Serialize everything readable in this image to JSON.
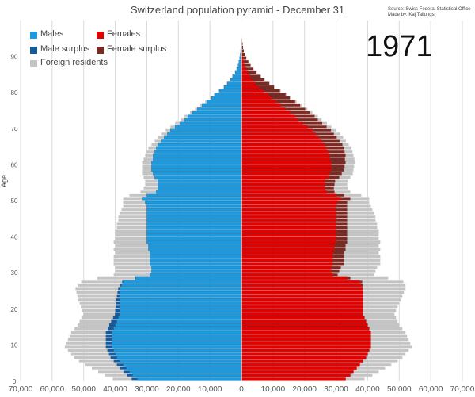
{
  "chart_data": {
    "type": "bar",
    "orientation": "horizontal-pyramid",
    "title": "Switzerland population pyramid - December 31",
    "year": "1971",
    "source": [
      "Source: Swiss Federal Statistical Office",
      "Made by: Kaj Tallungs"
    ],
    "ylabel": "Age",
    "xlim": [
      -70000,
      70000
    ],
    "ylim": [
      0,
      100
    ],
    "x_ticks": [
      -70000,
      -60000,
      -50000,
      -40000,
      -30000,
      -20000,
      -10000,
      0,
      10000,
      20000,
      30000,
      40000,
      50000,
      60000,
      70000
    ],
    "x_tick_labels": [
      "70,000",
      "60,000",
      "50,000",
      "40,000",
      "30,000",
      "20,000",
      "10,000",
      "0",
      "10,000",
      "20,000",
      "30,000",
      "40,000",
      "50,000",
      "60,000",
      "70,000"
    ],
    "y_ticks": [
      0,
      10,
      20,
      30,
      40,
      50,
      60,
      70,
      80,
      90
    ],
    "y_tick_labels": [
      "0",
      "10",
      "20",
      "30",
      "40",
      "50",
      "60",
      "70",
      "80",
      "90"
    ],
    "grid": true,
    "legend": [
      {
        "name": "Males",
        "color": "#1a9ae0"
      },
      {
        "name": "Females",
        "color": "#e50000"
      },
      {
        "name": "Male surplus",
        "color": "#155a9a"
      },
      {
        "name": "Female surplus",
        "color": "#7b2a23"
      },
      {
        "name": "Foreign residents",
        "color": "#c4c4c4"
      }
    ],
    "ages_start": 0,
    "ages_end": 99,
    "male_swiss": [
      33000,
      34500,
      35500,
      36500,
      37500,
      38500,
      39500,
      40000,
      40500,
      41000,
      41000,
      41000,
      41000,
      41000,
      40500,
      40000,
      39500,
      39000,
      38500,
      38500,
      38500,
      38500,
      38500,
      38500,
      38500,
      38500,
      38000,
      37500,
      33500,
      29000,
      28500,
      28500,
      29000,
      29000,
      29000,
      29000,
      29500,
      29500,
      30000,
      30000,
      30000,
      30000,
      30000,
      30000,
      30000,
      30000,
      30000,
      30000,
      30000,
      30500,
      31500,
      30000,
      27000,
      26500,
      26500,
      26500,
      27500,
      28000,
      28500,
      28500,
      28500,
      28000,
      28000,
      27500,
      27000,
      26500,
      25500,
      24500,
      23500,
      22500,
      21000,
      19500,
      18000,
      17000,
      15500,
      14000,
      12500,
      11000,
      9500,
      8500,
      7000,
      5500,
      4500,
      3500,
      2800,
      2000,
      1500,
      1100,
      800,
      550,
      380,
      250,
      170,
      110,
      70,
      40,
      25,
      15,
      8,
      4
    ],
    "female_swiss": [
      33000,
      34500,
      35500,
      36500,
      37500,
      38500,
      39500,
      40000,
      40500,
      41000,
      41000,
      41000,
      41000,
      41000,
      40500,
      40000,
      39500,
      39000,
      38500,
      38500,
      38500,
      38500,
      38500,
      38500,
      38500,
      38500,
      38000,
      37500,
      33500,
      29000,
      28500,
      28500,
      29000,
      29000,
      29000,
      29000,
      29500,
      29500,
      30000,
      30000,
      30000,
      30000,
      30000,
      30000,
      30000,
      30000,
      30000,
      30000,
      30000,
      30500,
      31500,
      30000,
      27000,
      26500,
      26500,
      26500,
      27500,
      28000,
      28500,
      28500,
      28500,
      28000,
      28000,
      27500,
      27000,
      26500,
      25500,
      24500,
      23500,
      22500,
      21000,
      19500,
      18000,
      17000,
      15500,
      14000,
      12500,
      11000,
      9500,
      8500,
      7000,
      5500,
      4500,
      3500,
      2800,
      2000,
      1500,
      1100,
      800,
      550,
      380,
      250,
      170,
      110,
      70,
      40,
      25,
      15,
      8,
      4
    ],
    "male_surplus": [
      1800,
      1800,
      1900,
      1900,
      2000,
      2000,
      2000,
      2000,
      2000,
      2000,
      2000,
      2000,
      2000,
      2000,
      1900,
      1900,
      1800,
      1700,
      1600,
      1500,
      1400,
      1300,
      1200,
      1000,
      800,
      600,
      400,
      300,
      200,
      0,
      0,
      0,
      0,
      0,
      0,
      0,
      0,
      0,
      0,
      0,
      0,
      0,
      0,
      0,
      0,
      0,
      0,
      0,
      0,
      0,
      0,
      0,
      0,
      0,
      0,
      0,
      0,
      0,
      0,
      0,
      0,
      0,
      0,
      0,
      0,
      0,
      0,
      0,
      0,
      0,
      0,
      0,
      0,
      0,
      0,
      0,
      0,
      0,
      0,
      0,
      0,
      0,
      0,
      0,
      0,
      0,
      0,
      0,
      0,
      0,
      0,
      0,
      0,
      0,
      0,
      0,
      0,
      0,
      0,
      0
    ],
    "female_surplus": [
      0,
      0,
      0,
      0,
      0,
      0,
      0,
      0,
      0,
      0,
      0,
      0,
      0,
      0,
      0,
      0,
      0,
      0,
      0,
      0,
      0,
      0,
      0,
      0,
      0,
      0,
      500,
      800,
      1000,
      1500,
      2500,
      3000,
      3500,
      3500,
      3500,
      3500,
      3500,
      3500,
      3500,
      3500,
      3500,
      3500,
      3500,
      3500,
      3500,
      3500,
      3500,
      3500,
      3500,
      3000,
      3000,
      2500,
      2500,
      2800,
      3000,
      3200,
      3500,
      3800,
      4000,
      4200,
      4500,
      4800,
      5000,
      5200,
      5400,
      5500,
      5600,
      5700,
      5800,
      5900,
      6000,
      6100,
      6200,
      6200,
      6200,
      6200,
      6100,
      6000,
      5800,
      5500,
      5200,
      4800,
      4300,
      3800,
      3300,
      2800,
      2300,
      1800,
      1400,
      1000,
      700,
      500,
      350,
      250,
      150,
      100,
      60,
      30,
      15,
      8
    ],
    "foreign_extra": [
      6000,
      7000,
      8000,
      9000,
      10000,
      11000,
      11500,
      12000,
      12500,
      13000,
      12500,
      12000,
      11500,
      11000,
      10500,
      10000,
      10000,
      10000,
      10000,
      10500,
      11000,
      11500,
      12000,
      12500,
      13000,
      13500,
      13500,
      13000,
      12000,
      11500,
      11500,
      11500,
      11500,
      11500,
      11500,
      11000,
      11000,
      10500,
      10500,
      10000,
      10000,
      10000,
      9500,
      9500,
      9000,
      9000,
      8500,
      8000,
      7500,
      7000,
      6000,
      5500,
      5000,
      4500,
      4000,
      4000,
      3500,
      3500,
      3000,
      3000,
      3000,
      3000,
      2500,
      2500,
      2500,
      2000,
      2000,
      2000,
      2000,
      1500,
      1500,
      1500,
      1200,
      1000,
      800,
      700,
      600,
      500,
      400,
      300,
      250,
      200,
      150,
      100,
      80,
      50,
      40,
      30,
      20,
      15,
      10,
      8,
      5,
      3,
      2,
      1,
      1,
      1,
      1,
      1
    ]
  }
}
